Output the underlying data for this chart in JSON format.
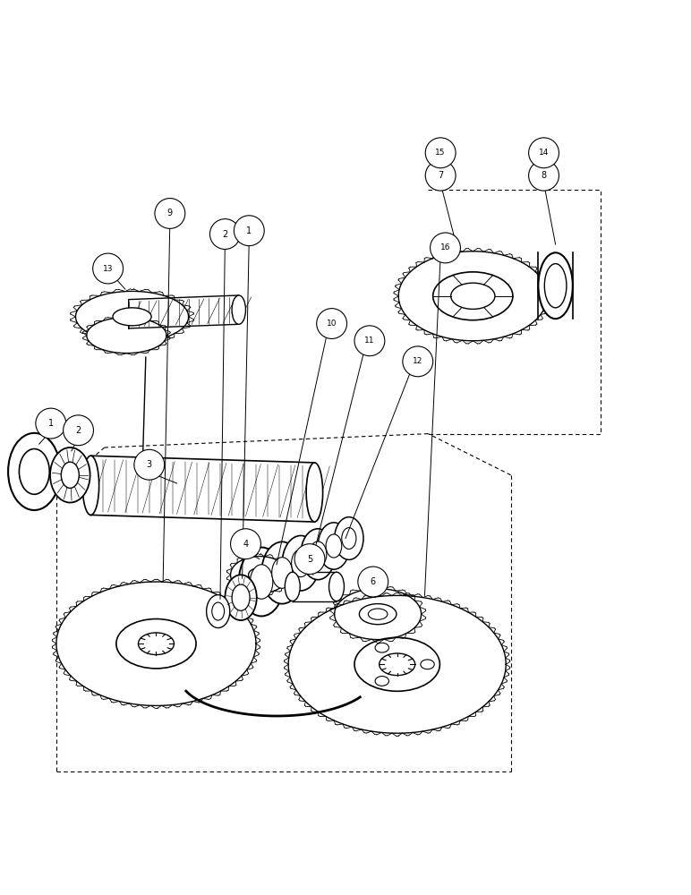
{
  "bg_color": "#ffffff",
  "line_color": "#000000",
  "fig_width": 7.72,
  "fig_height": 10.0,
  "dpi": 100
}
